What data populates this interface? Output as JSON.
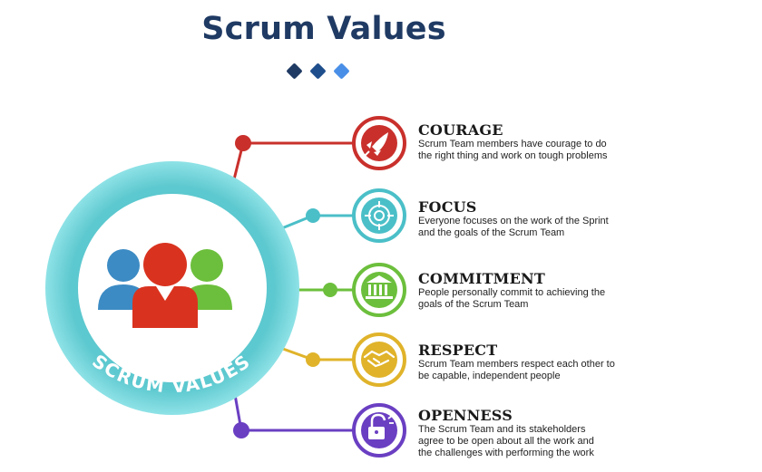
{
  "header": {
    "title": "Scrum Values"
  },
  "diagram": {
    "center_label": "SCRUM VALUES",
    "icons": {
      "center": "team-people-icon",
      "courage": "rocket-icon",
      "focus": "target-crosshair-icon",
      "commitment": "bank-building-icon",
      "respect": "handshake-icon",
      "openness": "unlocked-padlock-icon"
    },
    "colors": {
      "courage": "#c9302c",
      "focus": "#4bbfc8",
      "commitment": "#6cbf3c",
      "respect": "#e0b32a",
      "openness": "#6a3fc2",
      "ring": "#6fd0d6",
      "title": "#1f3a63"
    },
    "values": [
      {
        "title": "COURAGE",
        "description": "Scrum Team members have courage to do the right thing and work on tough problems"
      },
      {
        "title": "FOCUS",
        "description": "Everyone focuses on the work of the Sprint and the goals of the Scrum Team"
      },
      {
        "title": "COMMITMENT",
        "description": "People personally commit to achieving the goals of the Scrum Team"
      },
      {
        "title": "RESPECT",
        "description": "Scrum Team members respect each other to be capable, independent people"
      },
      {
        "title": "OPENNESS",
        "description": "The Scrum Team and its stakeholders agree to be open about all the work and the challenges with performing the work"
      }
    ]
  }
}
